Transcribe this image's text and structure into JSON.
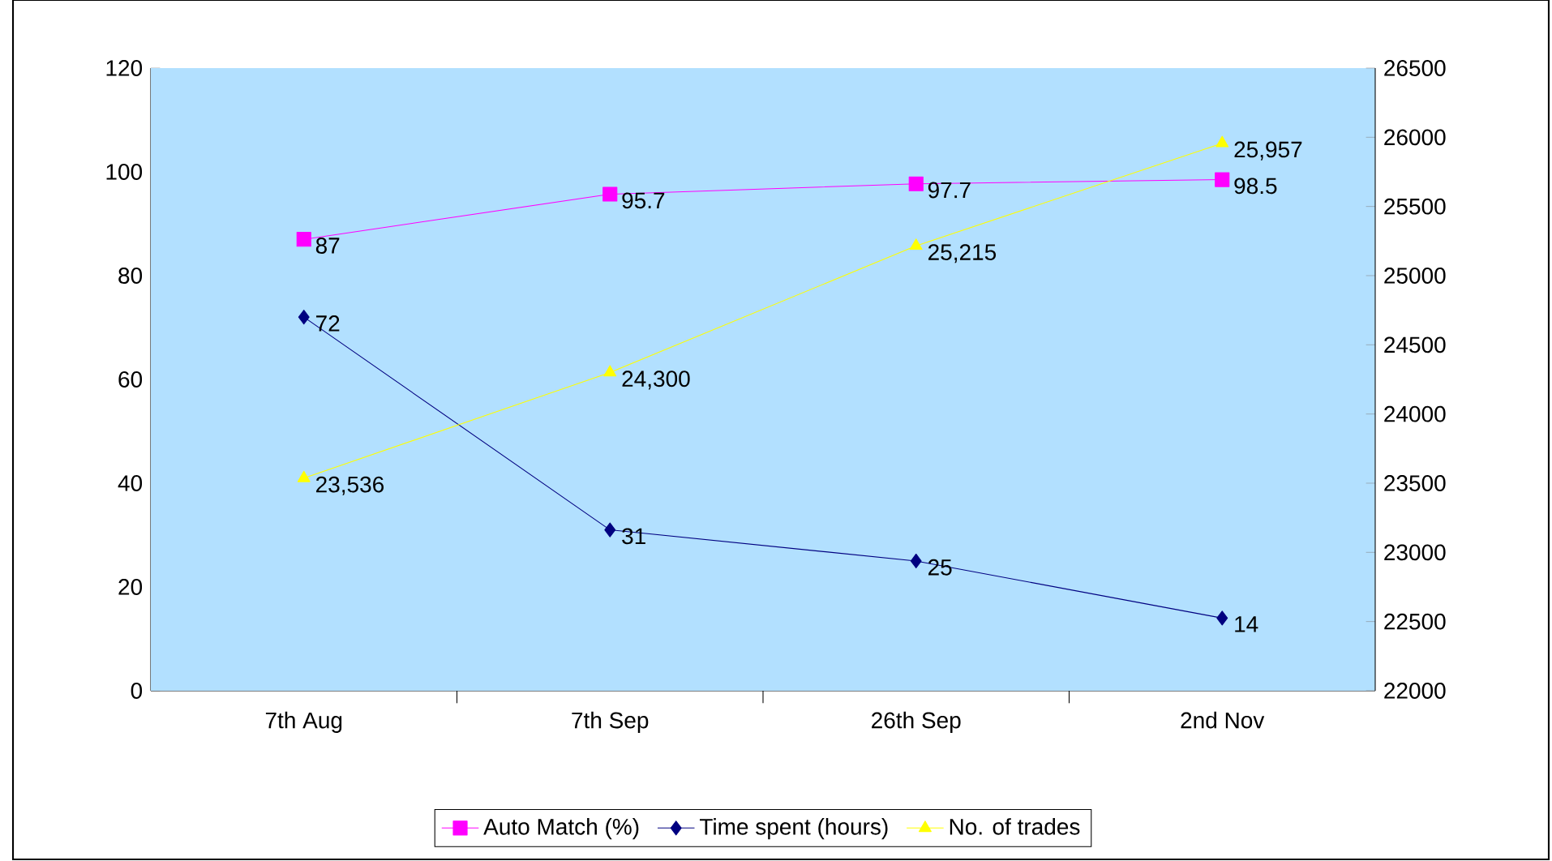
{
  "chart_data": {
    "type": "line",
    "categories": [
      "7th Aug",
      "7th Sep",
      "26th Sep",
      "2nd Nov"
    ],
    "ylim": [
      0,
      120
    ],
    "yticks": [
      0,
      20,
      40,
      60,
      80,
      100,
      120
    ],
    "y2lim": [
      22000,
      26500
    ],
    "y2ticks": [
      22000,
      22500,
      23000,
      23500,
      24000,
      24500,
      25000,
      25500,
      26000,
      26500
    ],
    "legend": "bottom",
    "grid": false,
    "series": [
      {
        "name": "Auto Match (%)",
        "color": "#ff00ff",
        "marker": "square",
        "values": [
          87,
          95.7,
          97.7,
          98.5
        ],
        "value_labels": [
          "87",
          "95.7",
          "97.7",
          "98.5"
        ]
      },
      {
        "name": "Time spent (hours)",
        "color": "#000080",
        "marker": "diamond",
        "values": [
          72,
          31,
          25,
          14
        ],
        "value_labels": [
          "72",
          "31",
          "25",
          "14"
        ]
      },
      {
        "name": "No. of trades",
        "color": "#ffff00",
        "marker": "triangle",
        "axis": "y2",
        "values": [
          23536,
          24300,
          25215,
          25957
        ],
        "value_labels": [
          "23,536",
          "24,300",
          "25,215",
          "25,957"
        ]
      }
    ]
  }
}
